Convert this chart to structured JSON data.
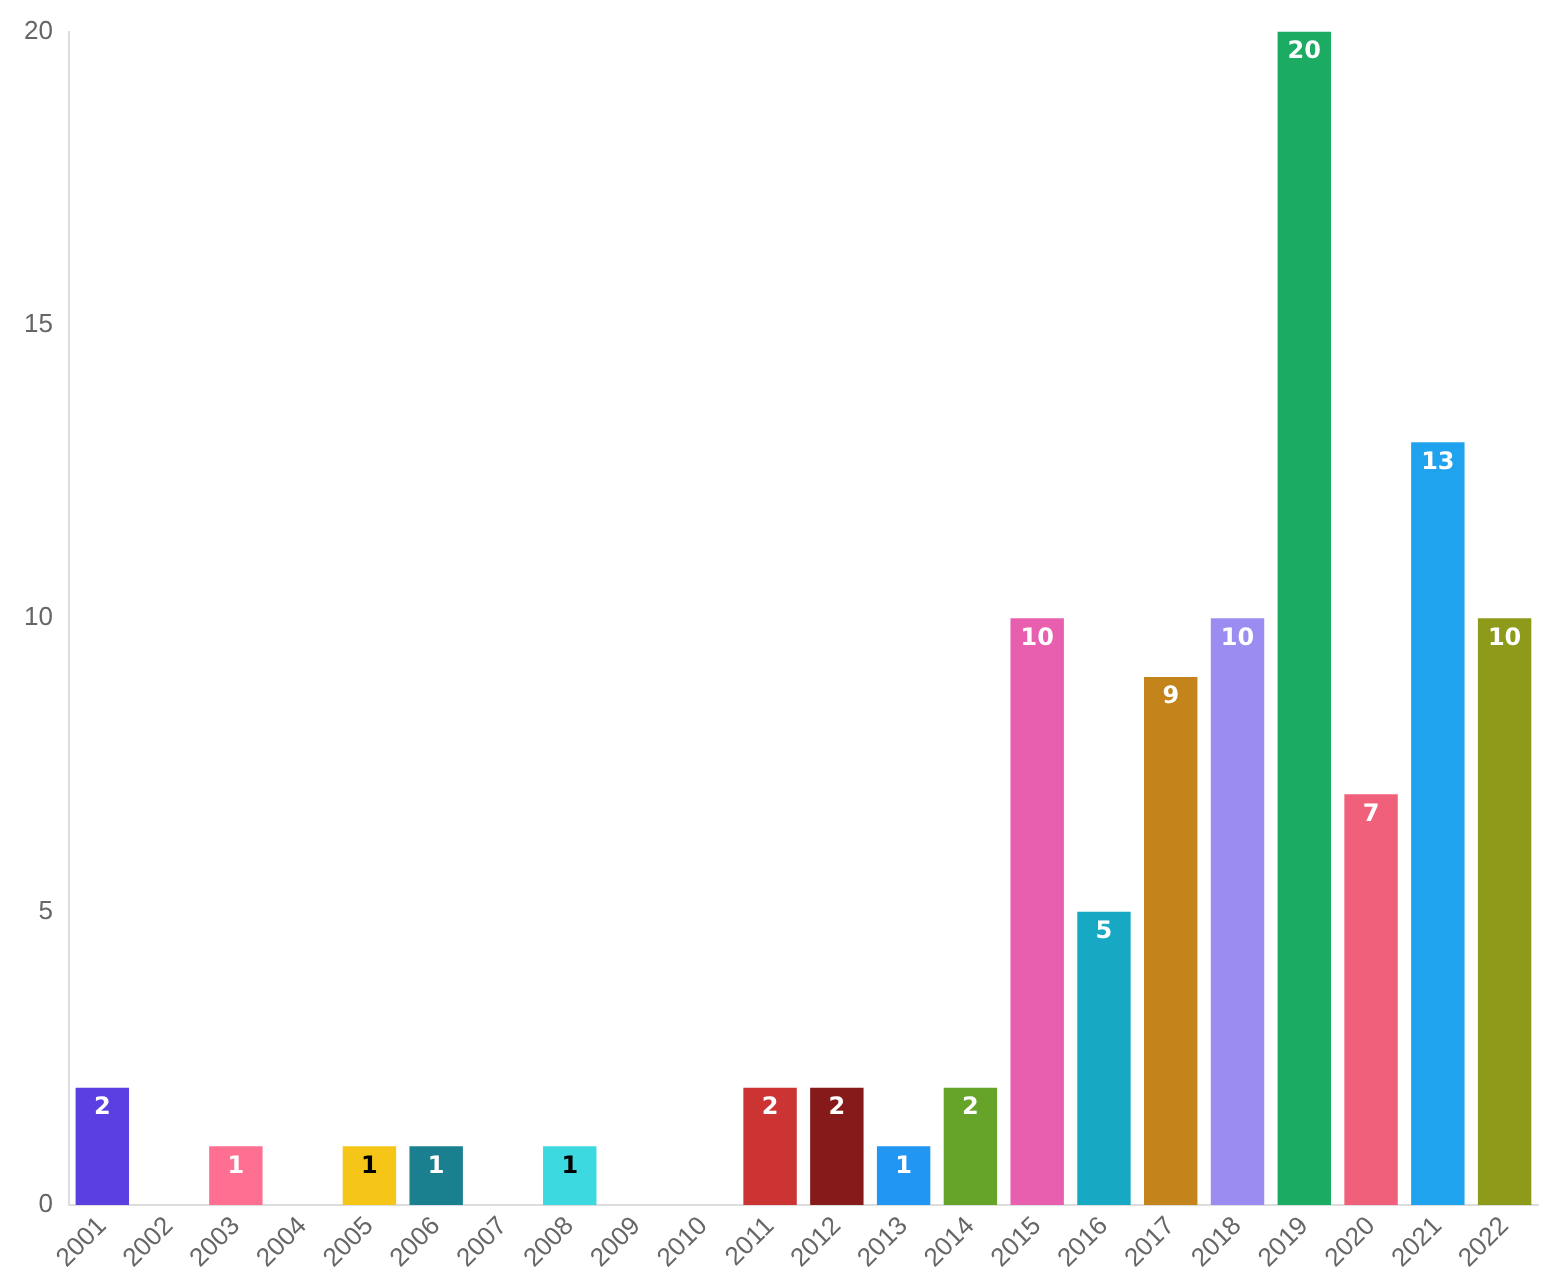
{
  "chart_data": {
    "type": "bar",
    "categories": [
      "2001",
      "2002",
      "2003",
      "2004",
      "2005",
      "2006",
      "2007",
      "2008",
      "2009",
      "2010",
      "2011",
      "2012",
      "2013",
      "2014",
      "2015",
      "2016",
      "2017",
      "2018",
      "2019",
      "2020",
      "2021",
      "2022"
    ],
    "values": [
      2,
      0,
      1,
      0,
      1,
      1,
      0,
      1,
      0,
      0,
      2,
      2,
      1,
      2,
      10,
      5,
      9,
      10,
      20,
      7,
      13,
      10
    ],
    "value_labels": [
      "2",
      null,
      "1",
      null,
      "1",
      "1",
      null,
      "1",
      null,
      null,
      "2",
      "2",
      "1",
      "2",
      "10",
      "5",
      "9",
      "10",
      "20",
      "7",
      "13",
      "10"
    ],
    "colors": [
      "#5b3fe0",
      "#cccccc",
      "#ff6f91",
      "#cccccc",
      "#f5c518",
      "#1a7f8e",
      "#cccccc",
      "#3dd9e0",
      "#cccccc",
      "#cccccc",
      "#cc3333",
      "#861a1a",
      "#2196f3",
      "#66a329",
      "#e85fb0",
      "#17a9c4",
      "#c4841c",
      "#9b8cf2",
      "#1bab63",
      "#f0607a",
      "#1fa3ee",
      "#8e9a1a"
    ],
    "ylim": [
      0,
      20
    ],
    "yticks": [
      0,
      5,
      10,
      15,
      20
    ],
    "grid": false,
    "legend": false
  }
}
